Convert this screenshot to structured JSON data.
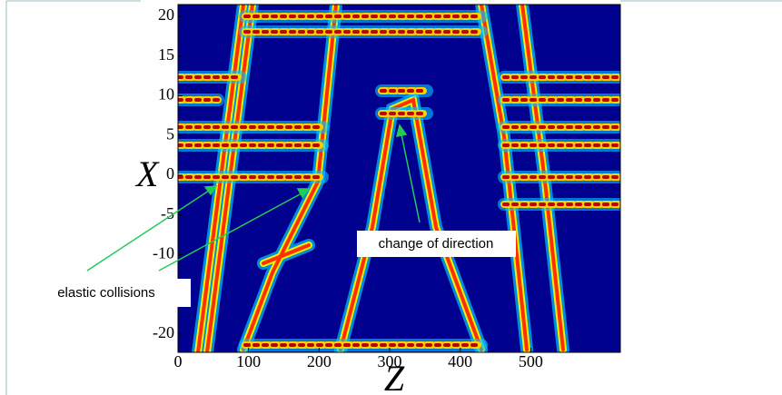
{
  "chart_data": {
    "type": "heatmap",
    "xlabel": "Z",
    "ylabel": "X",
    "xlim": [
      0,
      627
    ],
    "ylim": [
      -22.3,
      21.5
    ],
    "xticks": [
      0,
      100,
      200,
      300,
      400,
      500
    ],
    "yticks": [
      20,
      15,
      10,
      5,
      0,
      -5,
      -10,
      -20
    ],
    "annotations": [
      {
        "text": "change of direction"
      },
      {
        "text": "elastic collisions"
      }
    ]
  }
}
